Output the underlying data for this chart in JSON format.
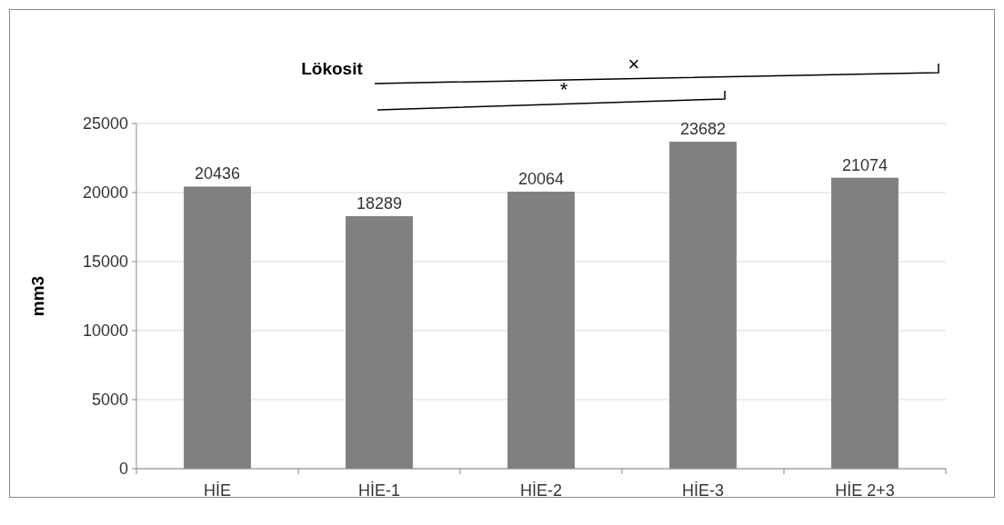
{
  "chart_data": {
    "type": "bar",
    "title": "Lökosit",
    "ylabel": "mm3",
    "categories": [
      "HİE",
      "HİE-1",
      "HİE-2",
      "HİE-3",
      "HİE 2+3"
    ],
    "values": [
      20436,
      18289,
      20064,
      23682,
      21074
    ],
    "color": "#808080",
    "ylim": [
      0,
      25000
    ],
    "yticks": [
      0,
      5000,
      10000,
      15000,
      20000,
      25000
    ],
    "grid": "y",
    "data_labels": true,
    "annotations": [
      "×",
      "*"
    ]
  }
}
